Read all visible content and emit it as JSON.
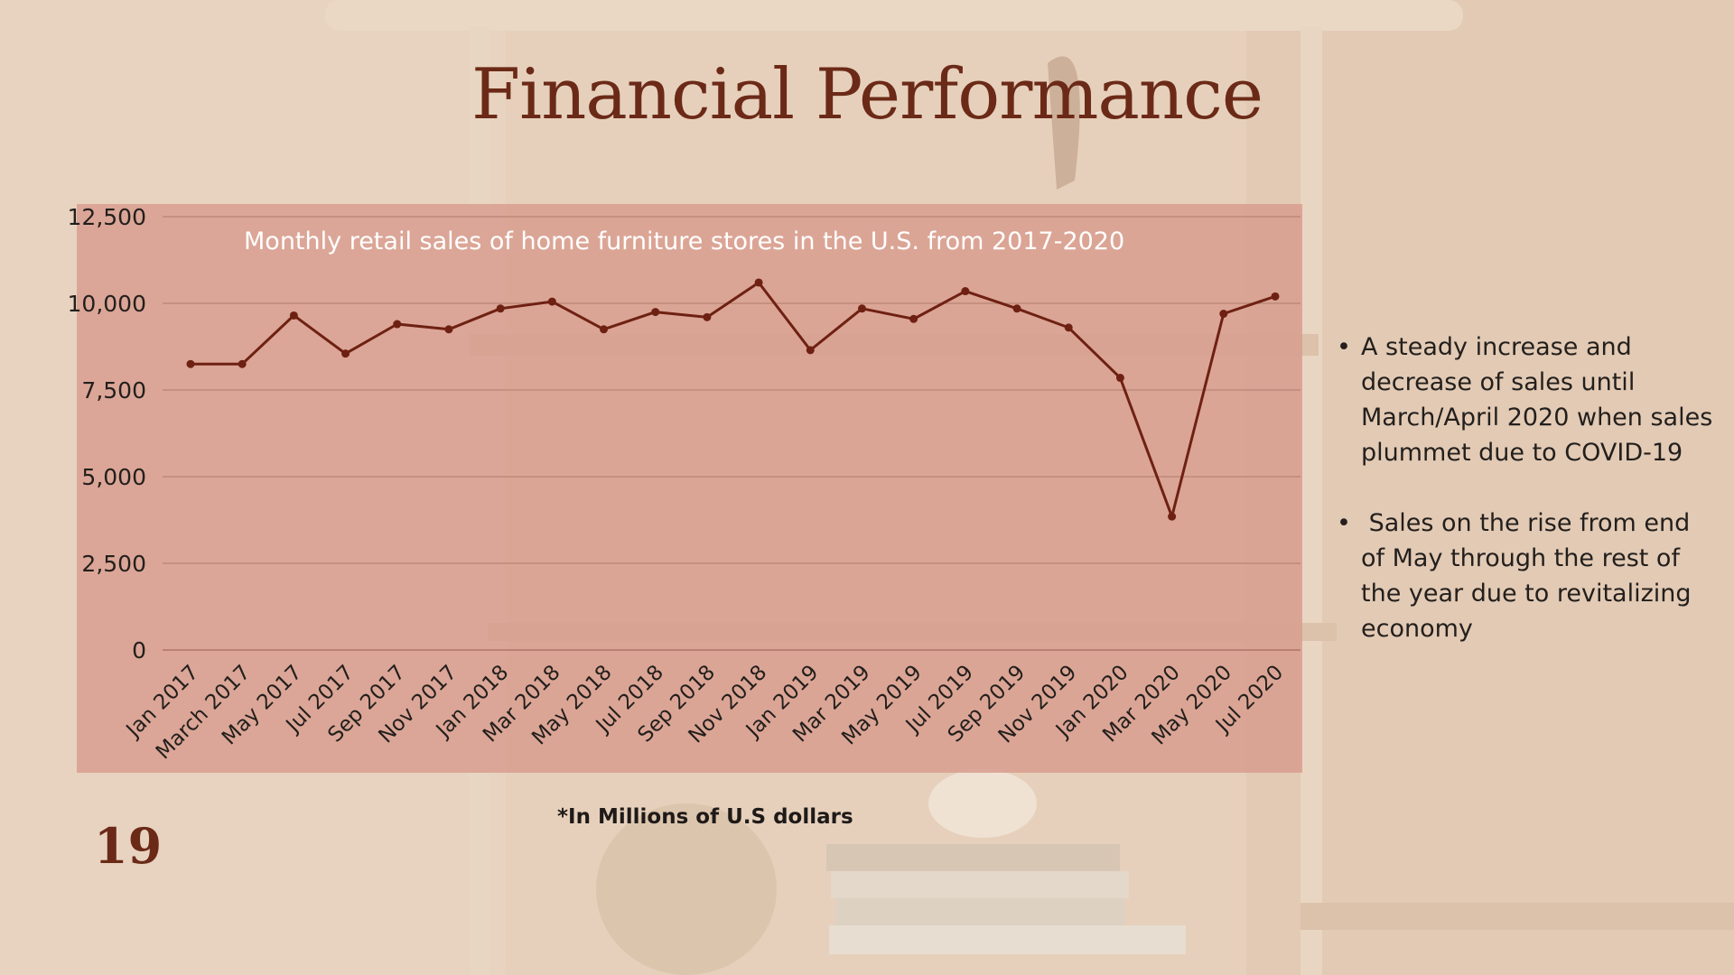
{
  "slide": {
    "title": "Financial Performance",
    "footnote": "*In Millions of U.S dollars",
    "page_number": "19",
    "bullets": [
      "A steady increase and decrease of sales until March/April 2020 when sales plummet due to COVID-19",
      " Sales on the rise from end of May through the rest of the year due to revitalizing economy"
    ]
  },
  "colors": {
    "title": "#6b2a17",
    "line": "#6e2112",
    "chart_panel": "#d89e8f",
    "background": "#e6d0bc"
  },
  "chart_data": {
    "type": "line",
    "title": "Monthly retail sales of home furniture stores in the U.S. from 2017-2020",
    "xlabel": "",
    "ylabel": "",
    "ylim": [
      0,
      12500
    ],
    "yticks": [
      "0",
      "2,500",
      "5,000",
      "7,500",
      "10,000",
      "12,500"
    ],
    "ytick_values": [
      0,
      2500,
      5000,
      7500,
      10000,
      12500
    ],
    "grid": true,
    "legend": "none",
    "categories": [
      "Jan 2017",
      "March 2017",
      "May 2017",
      "Jul 2017",
      "Sep 2017",
      "Nov 2017",
      "Jan 2018",
      "Mar 2018",
      "May 2018",
      "Jul 2018",
      "Sep 2018",
      "Nov 2018",
      "Jan 2019",
      "Mar 2019",
      "May 2019",
      "Jul 2019",
      "Sep 2019",
      "Nov 2019",
      "Jan 2020",
      "Mar 2020",
      "May 2020",
      "Jul 2020"
    ],
    "series": [
      {
        "values": [
          8250,
          8250,
          9650,
          8550,
          9400,
          9250,
          9850,
          10050,
          9250,
          9750,
          9600,
          10600,
          8650,
          9850,
          9550,
          10350,
          9850,
          9300,
          7850,
          3850,
          9700,
          10200
        ]
      }
    ]
  }
}
